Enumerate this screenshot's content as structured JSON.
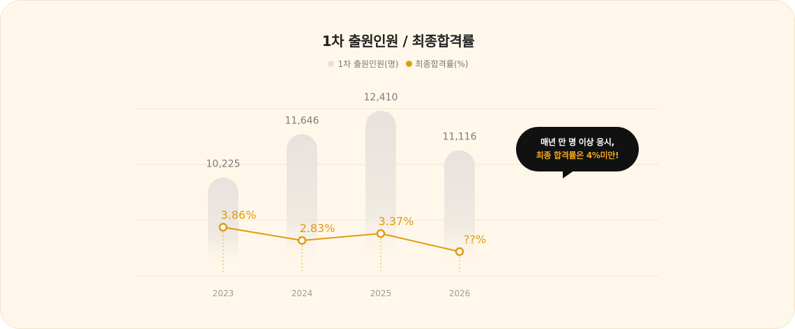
{
  "title": "1차 출원인원 / 최종합격률",
  "legend": [
    {
      "label": "1차 출원인원(명)",
      "color": "#e6e1db"
    },
    {
      "label": "최종합격률(%)",
      "color": "#e09a0f"
    }
  ],
  "callout": {
    "line1": "매년 만 명 이상 응시,",
    "line2": "최종 합격률은 4%미만!"
  },
  "chart_data": {
    "type": "bar",
    "title": "1차 출원인원 / 최종합격률",
    "categories": [
      "2023",
      "2024",
      "2025",
      "2026"
    ],
    "series": [
      {
        "name": "1차 출원인원(명)",
        "type": "bar",
        "values": [
          10225,
          11646,
          12410,
          11116
        ],
        "labels": [
          "10,225",
          "11,646",
          "12,410",
          "11,116"
        ],
        "color": "#e6e1db"
      },
      {
        "name": "최종합격률(%)",
        "type": "line",
        "values": [
          3.86,
          2.83,
          3.37,
          null
        ],
        "labels": [
          "3.86%",
          "2.83%",
          "3.37%",
          "??%"
        ],
        "color": "#e09a0f"
      }
    ],
    "grid": true,
    "legend_position": "top-center"
  }
}
